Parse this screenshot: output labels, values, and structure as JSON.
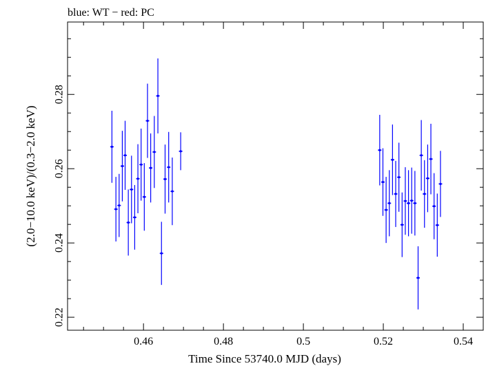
{
  "chart_data": {
    "type": "scatter",
    "title": "blue: WT − red: PC",
    "xlabel": "Time Since 53740.0 MJD (days)",
    "ylabel": "(2.0−10.0 keV)/(0.3−2.0 keV)",
    "xlim": [
      0.441,
      0.545
    ],
    "ylim": [
      0.2165,
      0.2995
    ],
    "x_ticks": [
      0.46,
      0.48,
      0.5,
      0.52,
      0.54
    ],
    "x_tick_labels": [
      "0.46",
      "0.48",
      "0.5",
      "0.52",
      "0.54"
    ],
    "y_ticks": [
      0.22,
      0.24,
      0.26,
      0.28
    ],
    "y_tick_labels": [
      "0.22",
      "0.24",
      "0.26",
      "0.28"
    ],
    "grid": false,
    "legend": "none",
    "series": [
      {
        "color": "#0000ff",
        "marker": "cross",
        "points": [
          {
            "x": 0.4521,
            "y": 0.2659,
            "err": 0.0097
          },
          {
            "x": 0.4531,
            "y": 0.2491,
            "err": 0.0087
          },
          {
            "x": 0.4539,
            "y": 0.2501,
            "err": 0.0085
          },
          {
            "x": 0.4547,
            "y": 0.2607,
            "err": 0.0095
          },
          {
            "x": 0.4554,
            "y": 0.2636,
            "err": 0.0093
          },
          {
            "x": 0.4562,
            "y": 0.2455,
            "err": 0.0089
          },
          {
            "x": 0.457,
            "y": 0.2544,
            "err": 0.0091
          },
          {
            "x": 0.4578,
            "y": 0.2469,
            "err": 0.0087
          },
          {
            "x": 0.4586,
            "y": 0.2573,
            "err": 0.0093
          },
          {
            "x": 0.4594,
            "y": 0.2611,
            "err": 0.0097
          },
          {
            "x": 0.4602,
            "y": 0.2524,
            "err": 0.0091
          },
          {
            "x": 0.461,
            "y": 0.2729,
            "err": 0.01
          },
          {
            "x": 0.4618,
            "y": 0.2602,
            "err": 0.0093
          },
          {
            "x": 0.4627,
            "y": 0.2645,
            "err": 0.0097
          },
          {
            "x": 0.4636,
            "y": 0.2796,
            "err": 0.0101
          },
          {
            "x": 0.4645,
            "y": 0.2372,
            "err": 0.0085
          },
          {
            "x": 0.4654,
            "y": 0.2572,
            "err": 0.0093
          },
          {
            "x": 0.4663,
            "y": 0.2604,
            "err": 0.0095
          },
          {
            "x": 0.4672,
            "y": 0.2539,
            "err": 0.0091
          },
          {
            "x": 0.4693,
            "y": 0.2647,
            "err": 0.0051
          },
          {
            "x": 0.5191,
            "y": 0.265,
            "err": 0.0095
          },
          {
            "x": 0.5199,
            "y": 0.2564,
            "err": 0.0091
          },
          {
            "x": 0.5207,
            "y": 0.2489,
            "err": 0.0089
          },
          {
            "x": 0.5215,
            "y": 0.2507,
            "err": 0.0089
          },
          {
            "x": 0.5223,
            "y": 0.2624,
            "err": 0.0095
          },
          {
            "x": 0.5231,
            "y": 0.2532,
            "err": 0.0089
          },
          {
            "x": 0.5239,
            "y": 0.2577,
            "err": 0.0093
          },
          {
            "x": 0.5247,
            "y": 0.2449,
            "err": 0.0087
          },
          {
            "x": 0.5255,
            "y": 0.2513,
            "err": 0.0091
          },
          {
            "x": 0.5263,
            "y": 0.2507,
            "err": 0.0089
          },
          {
            "x": 0.5271,
            "y": 0.2514,
            "err": 0.0089
          },
          {
            "x": 0.5279,
            "y": 0.2507,
            "err": 0.0087
          },
          {
            "x": 0.5287,
            "y": 0.2306,
            "err": 0.0085
          },
          {
            "x": 0.5295,
            "y": 0.2636,
            "err": 0.0095
          },
          {
            "x": 0.5303,
            "y": 0.2532,
            "err": 0.0091
          },
          {
            "x": 0.5311,
            "y": 0.2574,
            "err": 0.0091
          },
          {
            "x": 0.5319,
            "y": 0.2626,
            "err": 0.0095
          },
          {
            "x": 0.5327,
            "y": 0.2499,
            "err": 0.0089
          },
          {
            "x": 0.5335,
            "y": 0.2448,
            "err": 0.0085
          },
          {
            "x": 0.5343,
            "y": 0.2559,
            "err": 0.0089
          }
        ]
      }
    ]
  }
}
